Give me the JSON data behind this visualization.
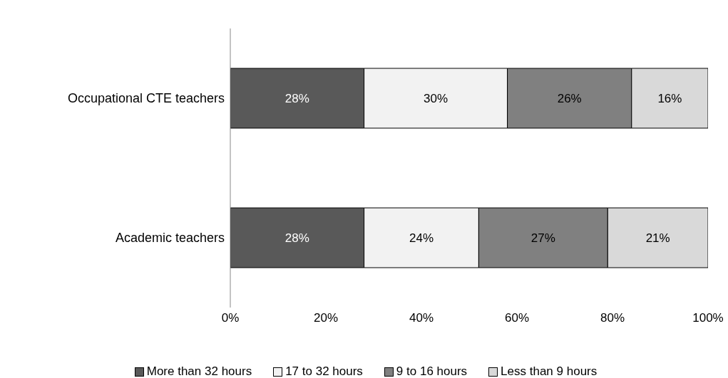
{
  "chart_data": {
    "type": "bar",
    "orientation": "horizontal",
    "stacked": true,
    "categories": [
      "Occupational CTE teachers",
      "Academic teachers"
    ],
    "series": [
      {
        "name": "More than 32 hours",
        "color": "#595959",
        "values": [
          28,
          28
        ],
        "value_labels": [
          "28%",
          "28%"
        ]
      },
      {
        "name": "17 to 32 hours",
        "color": "#f2f2f2",
        "values": [
          30,
          24
        ],
        "value_labels": [
          "30%",
          "24%"
        ]
      },
      {
        "name": "9 to 16 hours",
        "color": "#808080",
        "values": [
          26,
          27
        ],
        "value_labels": [
          "26%",
          "27%"
        ]
      },
      {
        "name": "Less than 9 hours",
        "color": "#d9d9d9",
        "values": [
          16,
          21
        ],
        "value_labels": [
          "16%",
          "21%"
        ]
      }
    ],
    "xlim": [
      0,
      100
    ],
    "xticks": [
      {
        "value": 0,
        "label": "0%"
      },
      {
        "value": 20,
        "label": "20%"
      },
      {
        "value": 40,
        "label": "40%"
      },
      {
        "value": 60,
        "label": "60%"
      },
      {
        "value": 80,
        "label": "80%"
      },
      {
        "value": 100,
        "label": "100%"
      }
    ],
    "grid": false,
    "legend": "bottom"
  }
}
